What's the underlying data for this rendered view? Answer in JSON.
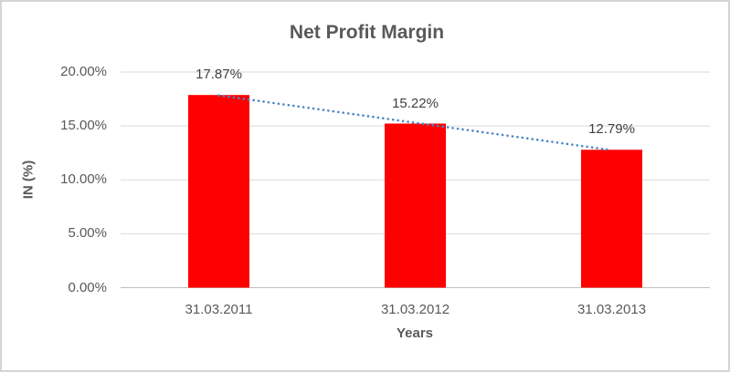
{
  "chart_data": {
    "type": "bar",
    "title": "Net Profit Margin",
    "categories": [
      "31.03.2011",
      "31.03.2012",
      "31.03.2013"
    ],
    "values": [
      17.87,
      15.22,
      12.79
    ],
    "data_labels": [
      "17.87%",
      "15.22%",
      "12.79%"
    ],
    "xlabel": "Years",
    "ylabel": "IN (%)",
    "ylim": [
      0,
      20
    ],
    "ytick_step": 5,
    "ytick_labels": [
      "0.00%",
      "5.00%",
      "10.00%",
      "15.00%",
      "20.00%"
    ],
    "grid": true,
    "legend": false,
    "trendline": {
      "type": "linear",
      "style": "dotted"
    },
    "colors": {
      "bar": "#FF0000",
      "trendline": "#4E86C8",
      "gridline": "#D9D9D9",
      "axis_line": "#BFBFBF",
      "title_text": "#595959",
      "axis_text": "#595959",
      "data_label_text": "#404040",
      "border": "#D6D4D4",
      "background": "#FFFFFF"
    }
  }
}
